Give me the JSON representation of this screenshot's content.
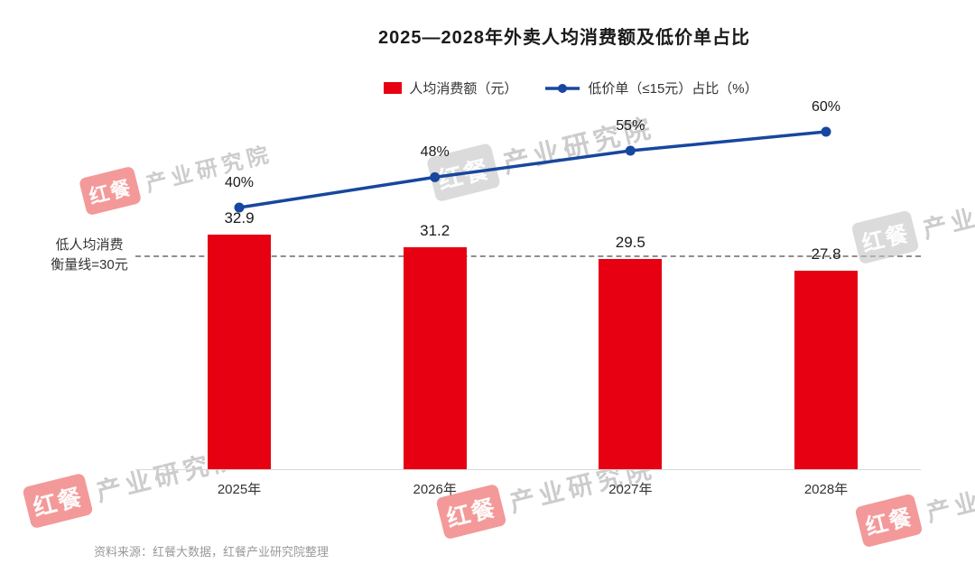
{
  "title": "2025—2028年外卖人均消费额及低价单占比",
  "legend": {
    "bar_label": "人均消费额（元）",
    "line_label": "低价单（≤15元）占比（%）"
  },
  "threshold_label_line1": "低人均消费",
  "threshold_label_line2": "衡量线=30元",
  "source": "资料来源：红餐大数据，红餐产业研究院整理",
  "watermark": {
    "badge": "红餐",
    "text": "产业研究院"
  },
  "chart_data": {
    "type": "bar+line",
    "title": "2025—2028年外卖人均消费额及低价单占比",
    "categories": [
      "2025年",
      "2026年",
      "2027年",
      "2028年"
    ],
    "series": [
      {
        "name": "人均消费额（元）",
        "type": "bar",
        "values": [
          32.9,
          31.2,
          29.5,
          27.8
        ],
        "color": "#e60012"
      },
      {
        "name": "低价单（≤15元）占比（%）",
        "type": "line",
        "values": [
          40,
          48,
          55,
          60
        ],
        "unit": "%",
        "color": "#17479e"
      }
    ],
    "threshold": {
      "value": 30,
      "label": "低人均消费衡量线=30元"
    },
    "ylim_bar": [
      0,
      47
    ],
    "legend_position": "top",
    "grid": false
  }
}
